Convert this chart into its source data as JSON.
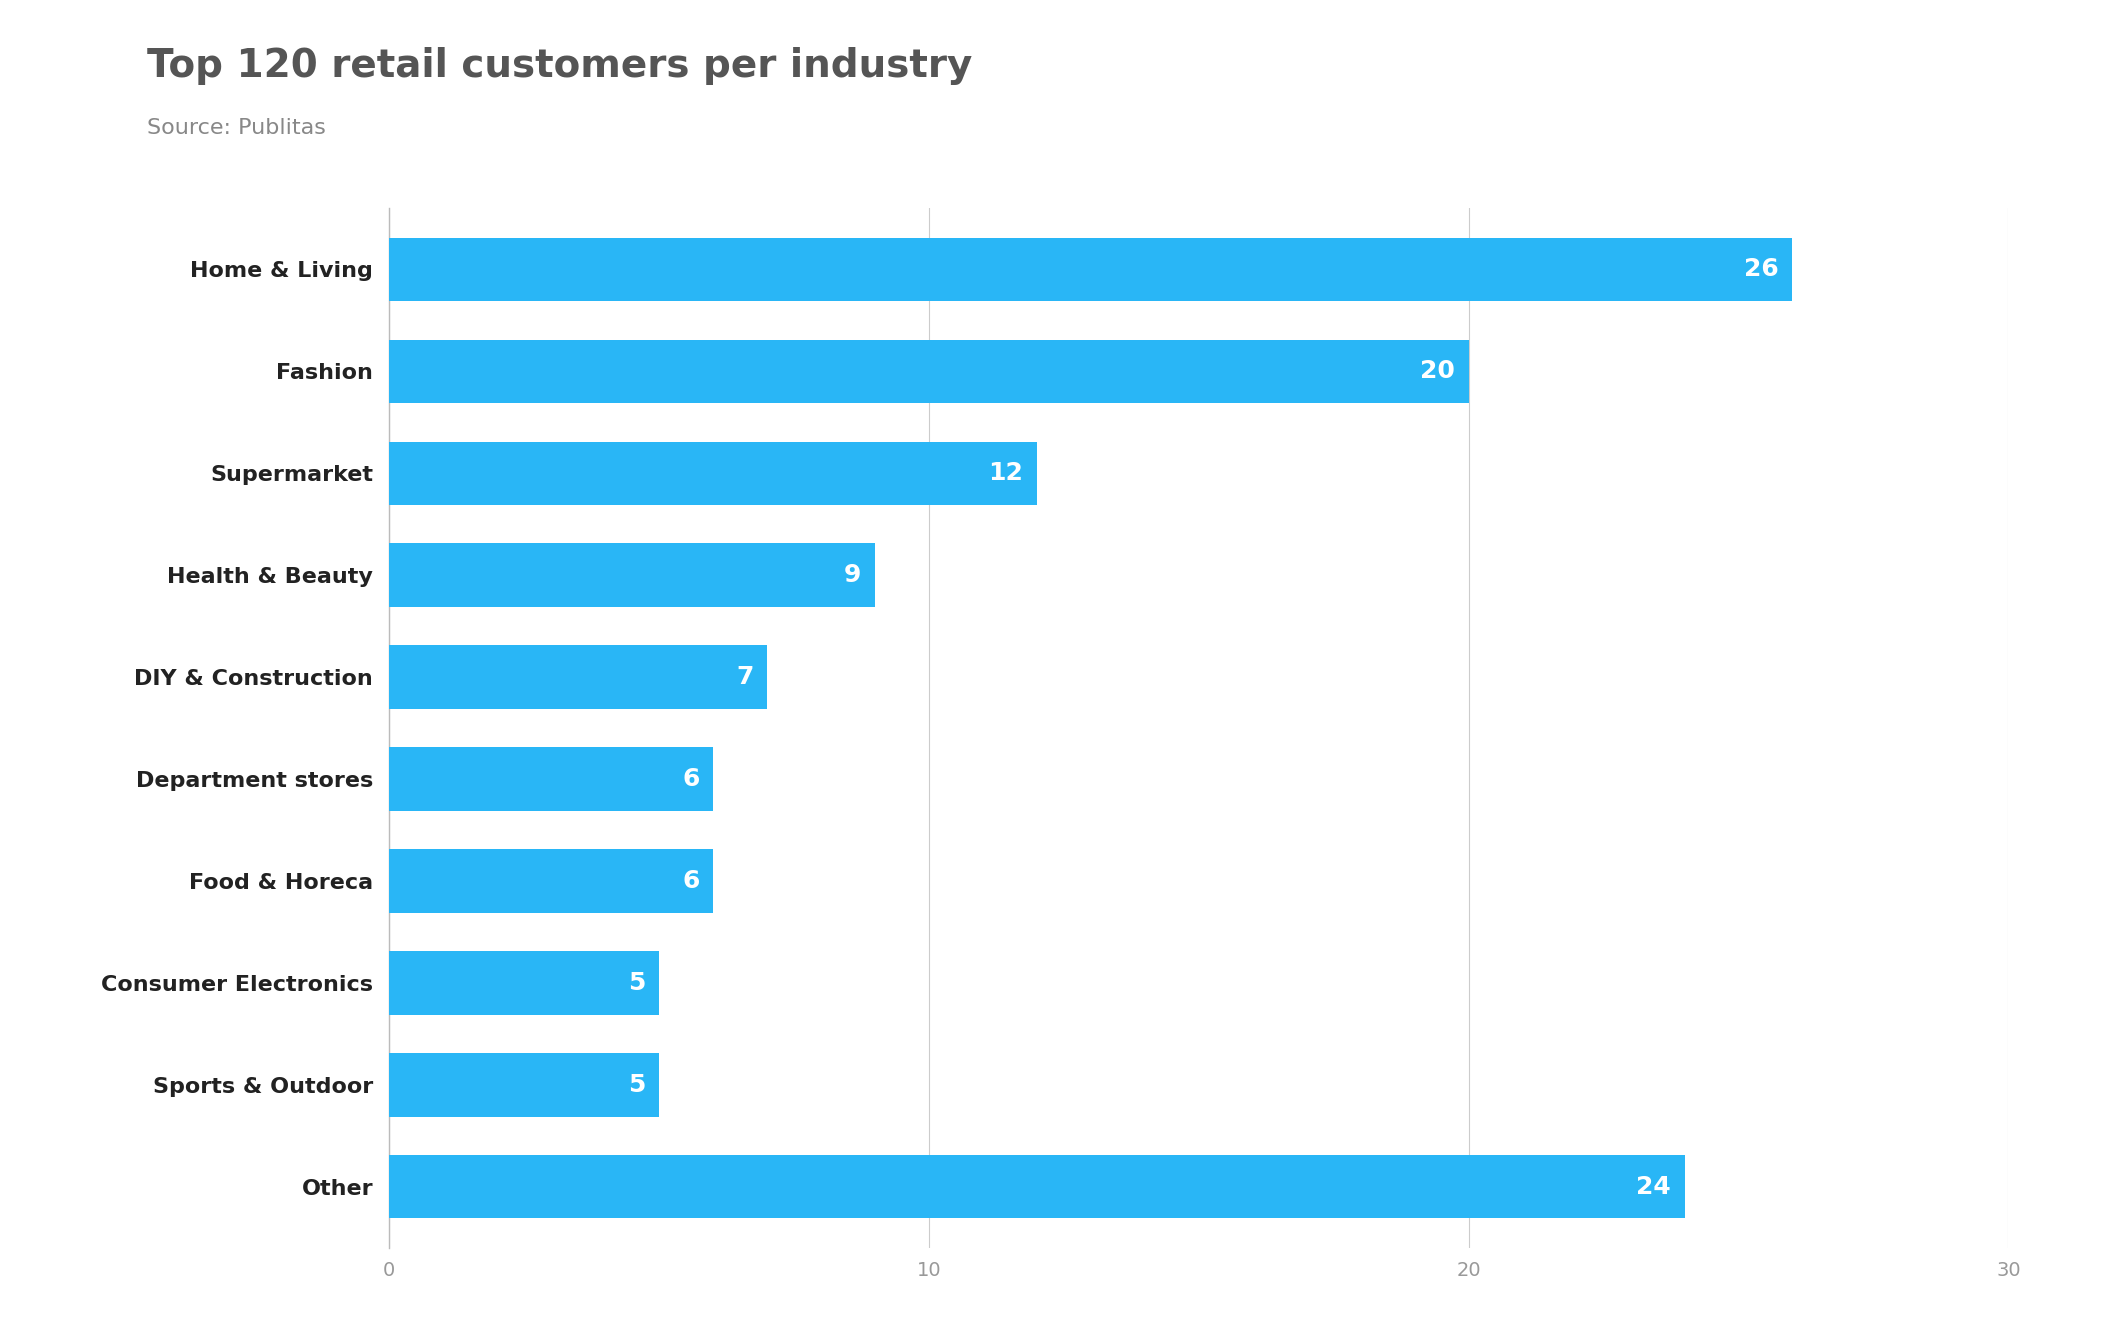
{
  "title": "Top 120 retail customers per industry",
  "subtitle": "Source: Publitas",
  "categories": [
    "Home & Living",
    "Fashion",
    "Supermarket",
    "Health & Beauty",
    "DIY & Construction",
    "Department stores",
    "Food & Horeca",
    "Consumer Electronics",
    "Sports & Outdoor",
    "Other"
  ],
  "values": [
    26,
    20,
    12,
    9,
    7,
    6,
    6,
    5,
    5,
    24
  ],
  "bar_color": "#29B6F6",
  "label_color": "#ffffff",
  "title_color": "#555555",
  "subtitle_color": "#888888",
  "yticklabel_color": "#222222",
  "xticklabel_color": "#999999",
  "gridline_color": "#cccccc",
  "background_color": "#ffffff",
  "xlim": [
    0,
    30
  ],
  "xticks": [
    0,
    10,
    20,
    30
  ],
  "title_fontsize": 28,
  "subtitle_fontsize": 16,
  "bar_label_fontsize": 18,
  "ytick_fontsize": 16,
  "xtick_fontsize": 14,
  "bar_height": 0.62
}
